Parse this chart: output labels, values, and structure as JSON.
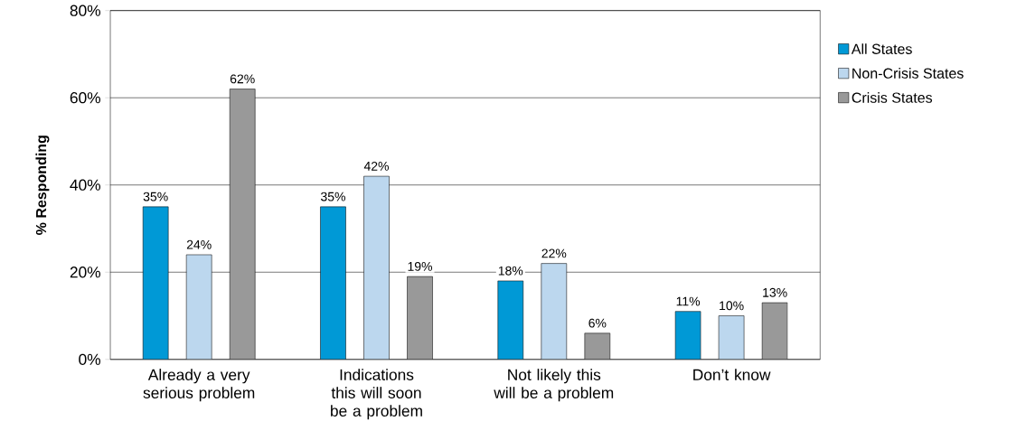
{
  "chart_data": {
    "type": "bar",
    "ylabel": "% Responding",
    "categories": [
      "Already a very serious problem",
      "Indications this will soon be a problem",
      "Not likely this will be a problem",
      "Don’t know"
    ],
    "series": [
      {
        "name": "All States",
        "color": "#0099d6",
        "values": [
          35,
          35,
          18,
          11
        ],
        "value_labels": [
          "35%",
          "35%",
          "18%",
          "11%"
        ]
      },
      {
        "name": "Non-Crisis States",
        "color": "#bcd7ee",
        "values": [
          24,
          42,
          22,
          10
        ],
        "value_labels": [
          "24%",
          "42%",
          "22%",
          "10%"
        ]
      },
      {
        "name": "Crisis States",
        "color": "#999999",
        "values": [
          62,
          19,
          6,
          13
        ],
        "value_labels": [
          "62%",
          "19%",
          "6%",
          "13%"
        ]
      }
    ],
    "ylim": [
      0,
      80
    ],
    "yticks": [
      {
        "value": 0,
        "label": "0%"
      },
      {
        "value": 20,
        "label": "20%"
      },
      {
        "value": 40,
        "label": "40%"
      },
      {
        "value": 60,
        "label": "60%"
      },
      {
        "value": 80,
        "label": "80%"
      }
    ],
    "grid": "y",
    "legend": "right"
  }
}
